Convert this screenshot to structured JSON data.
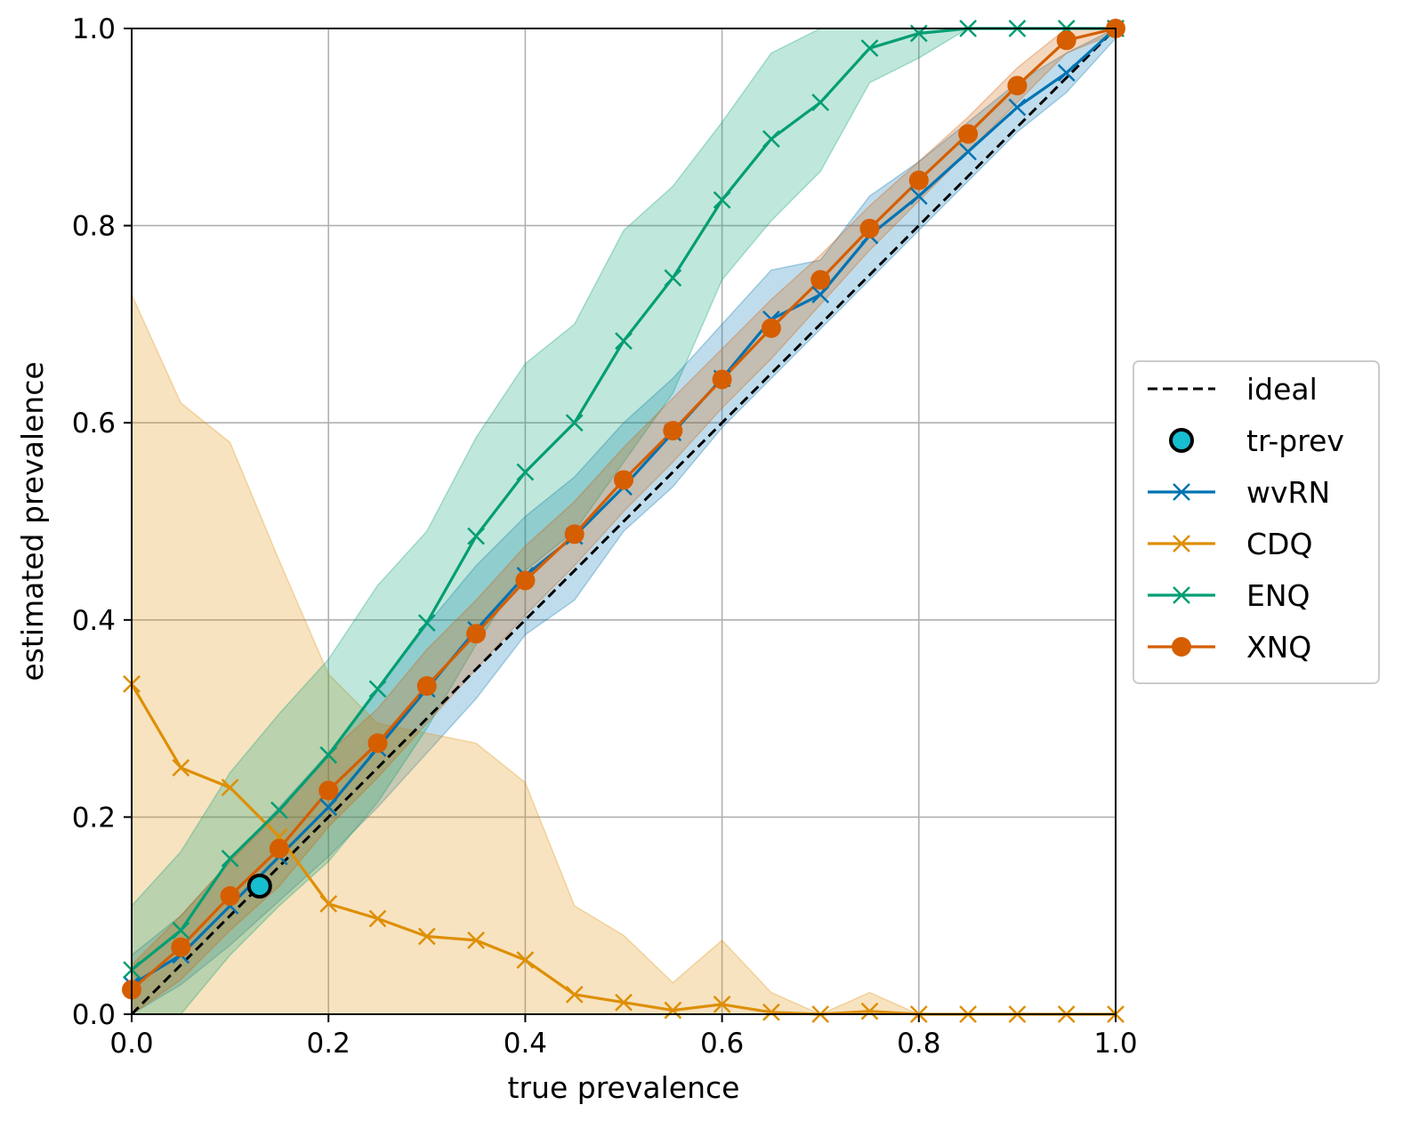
{
  "chart_data": {
    "type": "line",
    "title": "",
    "xlabel": "true prevalence",
    "ylabel": "estimated prevalence",
    "xlim": [
      0,
      1
    ],
    "ylim": [
      0,
      1
    ],
    "grid": true,
    "legend_position": "center-right outside",
    "x_ticks": [
      "0.0",
      "0.2",
      "0.4",
      "0.6",
      "0.8",
      "1.0"
    ],
    "y_ticks": [
      "0.0",
      "0.2",
      "0.4",
      "0.6",
      "0.8",
      "1.0"
    ],
    "x": [
      0.0,
      0.05,
      0.1,
      0.15,
      0.2,
      0.25,
      0.3,
      0.35,
      0.4,
      0.45,
      0.5,
      0.55,
      0.6,
      0.65,
      0.7,
      0.75,
      0.8,
      0.85,
      0.9,
      0.95,
      1.0
    ],
    "ideal": {
      "name": "ideal",
      "color": "#000000",
      "values": [
        [
          0,
          0
        ],
        [
          1,
          1
        ]
      ]
    },
    "training_prevalence": {
      "name": "tr-prev",
      "x": 0.13,
      "y": 0.13,
      "color": "#17becf"
    },
    "series": [
      {
        "name": "wvRN",
        "color": "#0173b2",
        "marker": "x",
        "values": [
          0.03,
          0.06,
          0.11,
          0.16,
          0.21,
          0.27,
          0.33,
          0.39,
          0.445,
          0.485,
          0.535,
          0.59,
          0.645,
          0.705,
          0.73,
          0.79,
          0.83,
          0.875,
          0.92,
          0.955,
          1.0
        ],
        "lower": [
          0.0,
          0.03,
          0.07,
          0.115,
          0.16,
          0.21,
          0.265,
          0.32,
          0.385,
          0.42,
          0.49,
          0.535,
          0.595,
          0.645,
          0.695,
          0.745,
          0.795,
          0.845,
          0.895,
          0.935,
          0.99
        ],
        "upper": [
          0.06,
          0.1,
          0.155,
          0.21,
          0.265,
          0.33,
          0.395,
          0.455,
          0.505,
          0.545,
          0.6,
          0.645,
          0.7,
          0.755,
          0.765,
          0.83,
          0.865,
          0.905,
          0.945,
          0.975,
          1.0
        ]
      },
      {
        "name": "CDQ",
        "color": "#de8f05",
        "marker": "x",
        "values": [
          0.335,
          0.25,
          0.23,
          0.18,
          0.112,
          0.097,
          0.079,
          0.075,
          0.055,
          0.02,
          0.012,
          0.004,
          0.01,
          0.002,
          0.0,
          0.003,
          0.0,
          0.0,
          0.0,
          0.0,
          0.0
        ],
        "lower": [
          0.0,
          0.0,
          0.0,
          0.0,
          0.0,
          0.0,
          0.0,
          0.0,
          0.0,
          0.0,
          0.0,
          0.0,
          0.0,
          0.0,
          0.0,
          0.0,
          0.0,
          0.0,
          0.0,
          0.0,
          0.0
        ],
        "upper": [
          0.73,
          0.62,
          0.58,
          0.46,
          0.345,
          0.295,
          0.285,
          0.275,
          0.235,
          0.11,
          0.08,
          0.032,
          0.075,
          0.022,
          0.0,
          0.022,
          0.0,
          0.0,
          0.0,
          0.0,
          0.0
        ]
      },
      {
        "name": "ENQ",
        "color": "#029e73",
        "marker": "x",
        "values": [
          0.045,
          0.085,
          0.158,
          0.207,
          0.263,
          0.33,
          0.397,
          0.485,
          0.55,
          0.6,
          0.683,
          0.747,
          0.826,
          0.888,
          0.925,
          0.98,
          0.995,
          1.0,
          1.0,
          1.0,
          1.0
        ],
        "lower": [
          0.0,
          0.0,
          0.06,
          0.11,
          0.155,
          0.215,
          0.29,
          0.375,
          0.45,
          0.49,
          0.56,
          0.63,
          0.745,
          0.805,
          0.855,
          0.945,
          0.97,
          1.0,
          1.0,
          1.0,
          1.0
        ],
        "upper": [
          0.11,
          0.165,
          0.245,
          0.305,
          0.36,
          0.435,
          0.49,
          0.585,
          0.66,
          0.7,
          0.795,
          0.84,
          0.905,
          0.975,
          1.0,
          1.0,
          1.0,
          1.0,
          1.0,
          1.0,
          1.0
        ]
      },
      {
        "name": "XNQ",
        "color": "#d55e00",
        "marker": "o",
        "values": [
          0.025,
          0.068,
          0.12,
          0.168,
          0.227,
          0.275,
          0.333,
          0.386,
          0.44,
          0.487,
          0.542,
          0.592,
          0.644,
          0.696,
          0.745,
          0.797,
          0.846,
          0.893,
          0.942,
          0.988,
          1.0
        ],
        "lower": [
          0.0,
          0.035,
          0.085,
          0.13,
          0.19,
          0.24,
          0.295,
          0.35,
          0.405,
          0.455,
          0.51,
          0.56,
          0.615,
          0.665,
          0.72,
          0.775,
          0.825,
          0.875,
          0.925,
          0.975,
          0.995
        ],
        "upper": [
          0.05,
          0.1,
          0.155,
          0.205,
          0.265,
          0.31,
          0.37,
          0.42,
          0.475,
          0.52,
          0.575,
          0.625,
          0.675,
          0.725,
          0.77,
          0.82,
          0.865,
          0.91,
          0.96,
          1.0,
          1.0
        ]
      }
    ]
  }
}
